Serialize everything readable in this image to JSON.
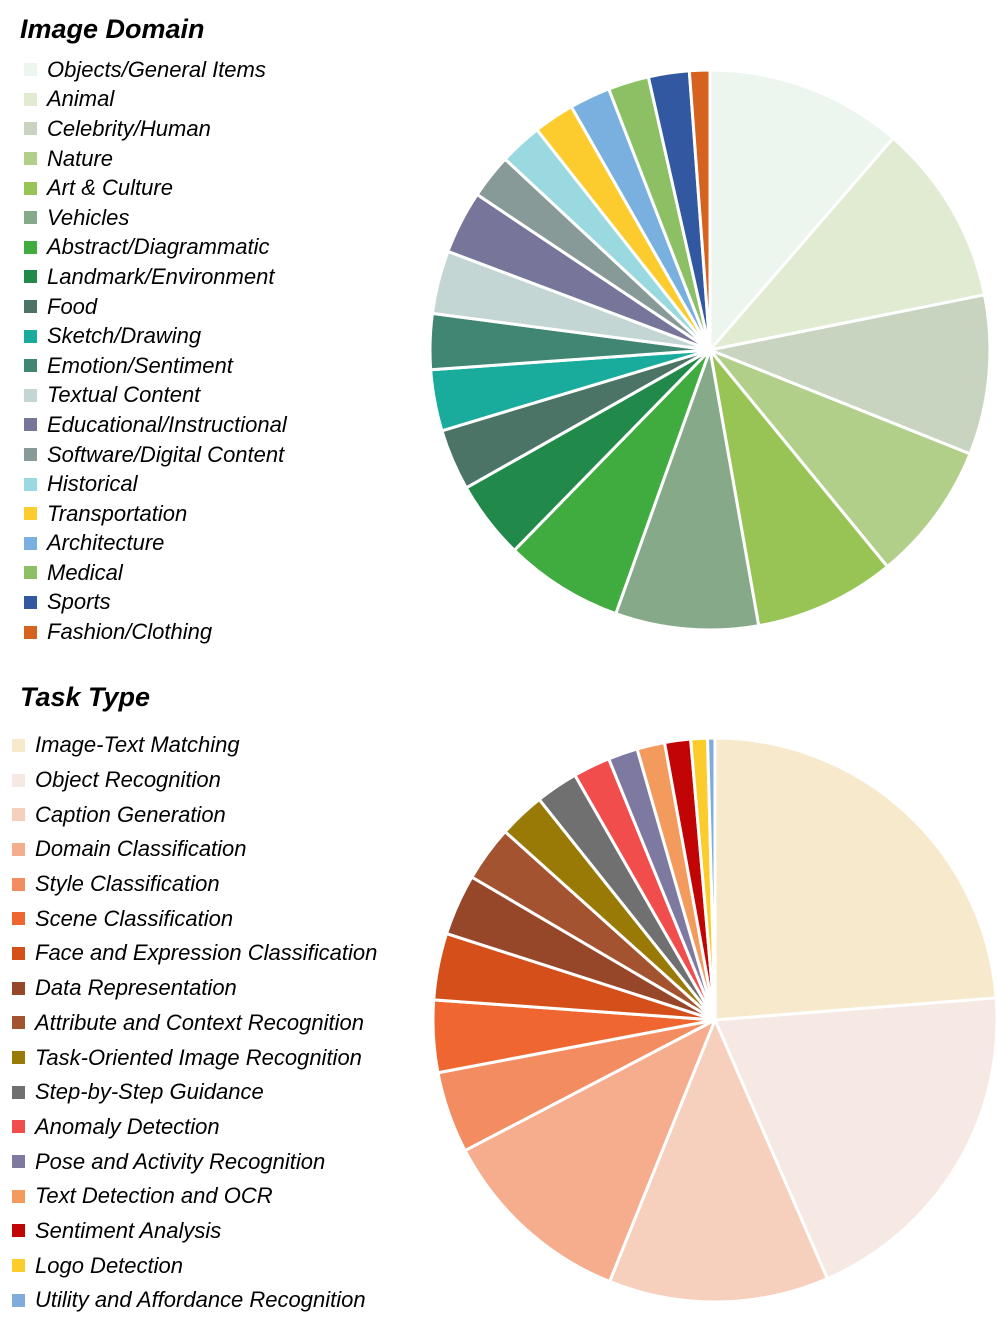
{
  "chart_data": [
    {
      "type": "pie",
      "title": "Image Domain",
      "legend_position": "left",
      "start_angle": "top",
      "direction": "clockwise",
      "categories": [
        "Objects/General Items",
        "Animal",
        "Celebrity/Human",
        "Nature",
        "Art & Culture",
        "Vehicles",
        "Abstract/Diagrammatic",
        "Landmark/Environment",
        "Food",
        "Sketch/Drawing",
        "Emotion/Sentiment",
        "Textual Content",
        "Educational/Instructional",
        "Software/Digital Content",
        "Historical",
        "Transportation",
        "Architecture",
        "Medical",
        "Sports",
        "Fashion/Clothing"
      ],
      "values": [
        10.6,
        9.8,
        8.6,
        7.5,
        7.6,
        7.7,
        6.4,
        4.2,
        3.3,
        3.3,
        3.0,
        3.4,
        3.4,
        2.4,
        2.3,
        2.2,
        2.2,
        2.2,
        2.2,
        1.1
      ],
      "colors": [
        "#edf5ef",
        "#e1ebd2",
        "#c8d4c0",
        "#b2cf8a",
        "#98c455",
        "#86a98a",
        "#40ab3e",
        "#218a4b",
        "#4b7366",
        "#19ab9b",
        "#418672",
        "#c4d6d4",
        "#777599",
        "#889a97",
        "#9ad9e0",
        "#fccb2e",
        "#7ab0e0",
        "#8dc064",
        "#3158a0",
        "#d5621e"
      ]
    },
    {
      "type": "pie",
      "title": "Task Type",
      "legend_position": "left",
      "start_angle": "top",
      "direction": "clockwise",
      "categories": [
        "Image-Text Matching",
        "Object Recognition",
        "Caption Generation",
        "Domain Classification",
        "Style Classification",
        "Scene Classification",
        "Face and Expression Classification",
        "Data Representation",
        "Attribute and Context Recognition",
        "Task-Oriented Image Recognition",
        "Step-by-Step Guidance",
        "Anomaly Detection",
        "Pose and Activity Recognition",
        "Text Detection and OCR",
        "Sentiment Analysis",
        "Logo Detection",
        "Utility and Affordance Recognition"
      ],
      "values": [
        22.4,
        18.6,
        11.9,
        10.6,
        4.4,
        3.9,
        3.6,
        3.3,
        3.0,
        2.5,
        2.3,
        2.0,
        1.6,
        1.5,
        1.4,
        0.9,
        0.4
      ],
      "colors": [
        "#f7e9cc",
        "#f6e8e3",
        "#f6cfbd",
        "#f5ad8e",
        "#f48c62",
        "#ef6630",
        "#d44f1a",
        "#974729",
        "#a45330",
        "#9a7a06",
        "#707070",
        "#f14d4d",
        "#7d79a0",
        "#f39b5c",
        "#c10404",
        "#fccc2c",
        "#80abdd"
      ]
    }
  ]
}
